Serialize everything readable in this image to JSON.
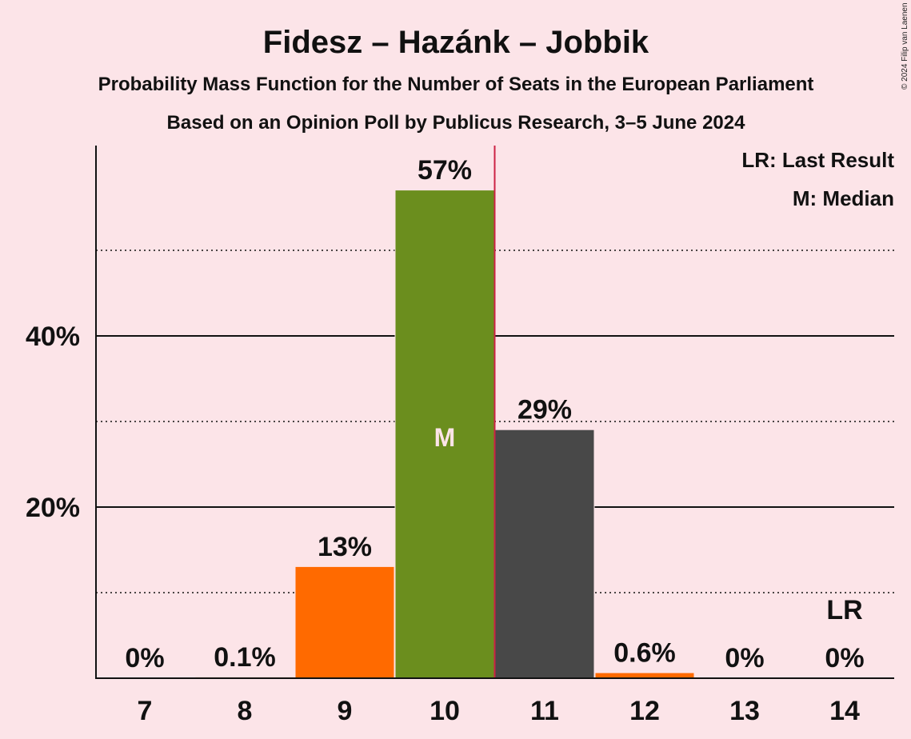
{
  "chart_data": {
    "type": "bar",
    "title": "Fidesz – Hazánk – Jobbik",
    "subtitle": "Probability Mass Function for the Number of Seats in the European Parliament",
    "subtitle2": "Based on an Opinion Poll by Publicus Research, 3–5 June 2024",
    "copyright": "© 2024 Filip van Laenen",
    "categories": [
      "7",
      "8",
      "9",
      "10",
      "11",
      "12",
      "13",
      "14"
    ],
    "values": [
      0,
      0.1,
      13,
      57,
      29,
      0.6,
      0,
      0
    ],
    "labels": [
      "0%",
      "0.1%",
      "13%",
      "57%",
      "29%",
      "0.6%",
      "0%",
      "0%"
    ],
    "colors": [
      "#ff6a00",
      "#ff6a00",
      "#ff6a00",
      "#6b8e1e",
      "#484848",
      "#ff6a00",
      "#ff6a00",
      "#ff6a00"
    ],
    "ylim": [
      0,
      62
    ],
    "yticks_major": [
      20,
      40
    ],
    "ytick_labels": [
      "20%",
      "40%"
    ],
    "yticks_minor": [
      10,
      30,
      50
    ],
    "median_category": "10",
    "median_label": "M",
    "last_result_category": "14",
    "last_result_label": "LR",
    "majority_line_after": "10",
    "majority_line_color": "#cc2244",
    "legend": [
      "LR: Last Result",
      "M: Median"
    ],
    "legend_position": "top-right",
    "grid": true
  }
}
